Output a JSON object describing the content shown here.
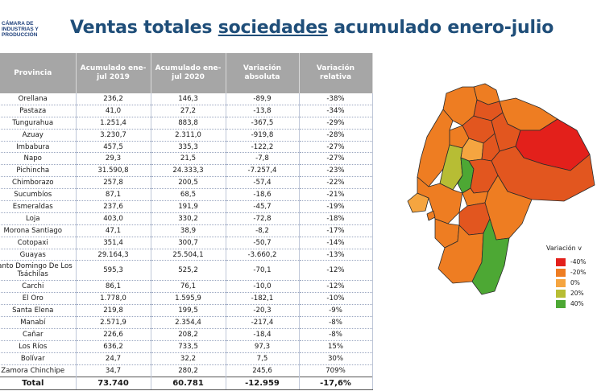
{
  "logo": {
    "line1": "CÁMARA DE",
    "line2": "INDUSTRIAS Y",
    "line3": "PRODUCCIÓN"
  },
  "title": {
    "part1": "Ventas totales ",
    "part2": "sociedades",
    "part3": " acumulado enero-julio"
  },
  "table": {
    "headers": [
      "Provincia",
      "Acumulado ene-jul 2019",
      "Acumulado ene-jul 2020",
      "Variación absoluta",
      "Variación relativa"
    ],
    "rows": [
      [
        "Orellana",
        "236,2",
        "146,3",
        "-89,9",
        "-38%"
      ],
      [
        "Pastaza",
        "41,0",
        "27,2",
        "-13,8",
        "-34%"
      ],
      [
        "Tungurahua",
        "1.251,4",
        "883,8",
        "-367,5",
        "-29%"
      ],
      [
        "Azuay",
        "3.230,7",
        "2.311,0",
        "-919,8",
        "-28%"
      ],
      [
        "Imbabura",
        "457,5",
        "335,3",
        "-122,2",
        "-27%"
      ],
      [
        "Napo",
        "29,3",
        "21,5",
        "-7,8",
        "-27%"
      ],
      [
        "Pichincha",
        "31.590,8",
        "24.333,3",
        "-7.257,4",
        "-23%"
      ],
      [
        "Chimborazo",
        "257,8",
        "200,5",
        "-57,4",
        "-22%"
      ],
      [
        "Sucumbíos",
        "87,1",
        "68,5",
        "-18,6",
        "-21%"
      ],
      [
        "Esmeraldas",
        "237,6",
        "191,9",
        "-45,7",
        "-19%"
      ],
      [
        "Loja",
        "403,0",
        "330,2",
        "-72,8",
        "-18%"
      ],
      [
        "Morona Santiago",
        "47,1",
        "38,9",
        "-8,2",
        "-17%"
      ],
      [
        "Cotopaxi",
        "351,4",
        "300,7",
        "-50,7",
        "-14%"
      ],
      [
        "Guayas",
        "29.164,3",
        "25.504,1",
        "-3.660,2",
        "-13%"
      ],
      [
        "Santo Domingo De Los Tsáchilas",
        "595,3",
        "525,2",
        "-70,1",
        "-12%"
      ],
      [
        "Carchi",
        "86,1",
        "76,1",
        "-10,0",
        "-12%"
      ],
      [
        "El Oro",
        "1.778,0",
        "1.595,9",
        "-182,1",
        "-10%"
      ],
      [
        "Santa Elena",
        "219,8",
        "199,5",
        "-20,3",
        "-9%"
      ],
      [
        "Manabí",
        "2.571,9",
        "2.354,4",
        "-217,4",
        "-8%"
      ],
      [
        "Cañar",
        "226,6",
        "208,2",
        "-18,4",
        "-8%"
      ],
      [
        "Los Ríos",
        "636,2",
        "733,5",
        "97,3",
        "15%"
      ],
      [
        "Bolívar",
        "24,7",
        "32,2",
        "7,5",
        "30%"
      ],
      [
        "Zamora Chinchipe",
        "34,7",
        "280,2",
        "245,6",
        "709%"
      ]
    ],
    "total": [
      "Total",
      "73.740",
      "60.781",
      "-12.959",
      "-17,6%"
    ]
  },
  "legend": {
    "title": "Variación v",
    "items": [
      {
        "label": "-40%",
        "color": "#e3201b"
      },
      {
        "label": "-20%",
        "color": "#ee7d22"
      },
      {
        "label": "0%",
        "color": "#f5a540"
      },
      {
        "label": "20%",
        "color": "#b7bd34"
      },
      {
        "label": "40%",
        "color": "#4da834"
      }
    ]
  },
  "colors": {
    "title": "#1f4e79",
    "header_bg": "#a6a6a6",
    "map_red": "#e3201b",
    "map_dark_orange": "#e2561f",
    "map_orange": "#ee7d22",
    "map_light_orange": "#f5a540",
    "map_olive": "#b7bd34",
    "map_green": "#4da834"
  }
}
